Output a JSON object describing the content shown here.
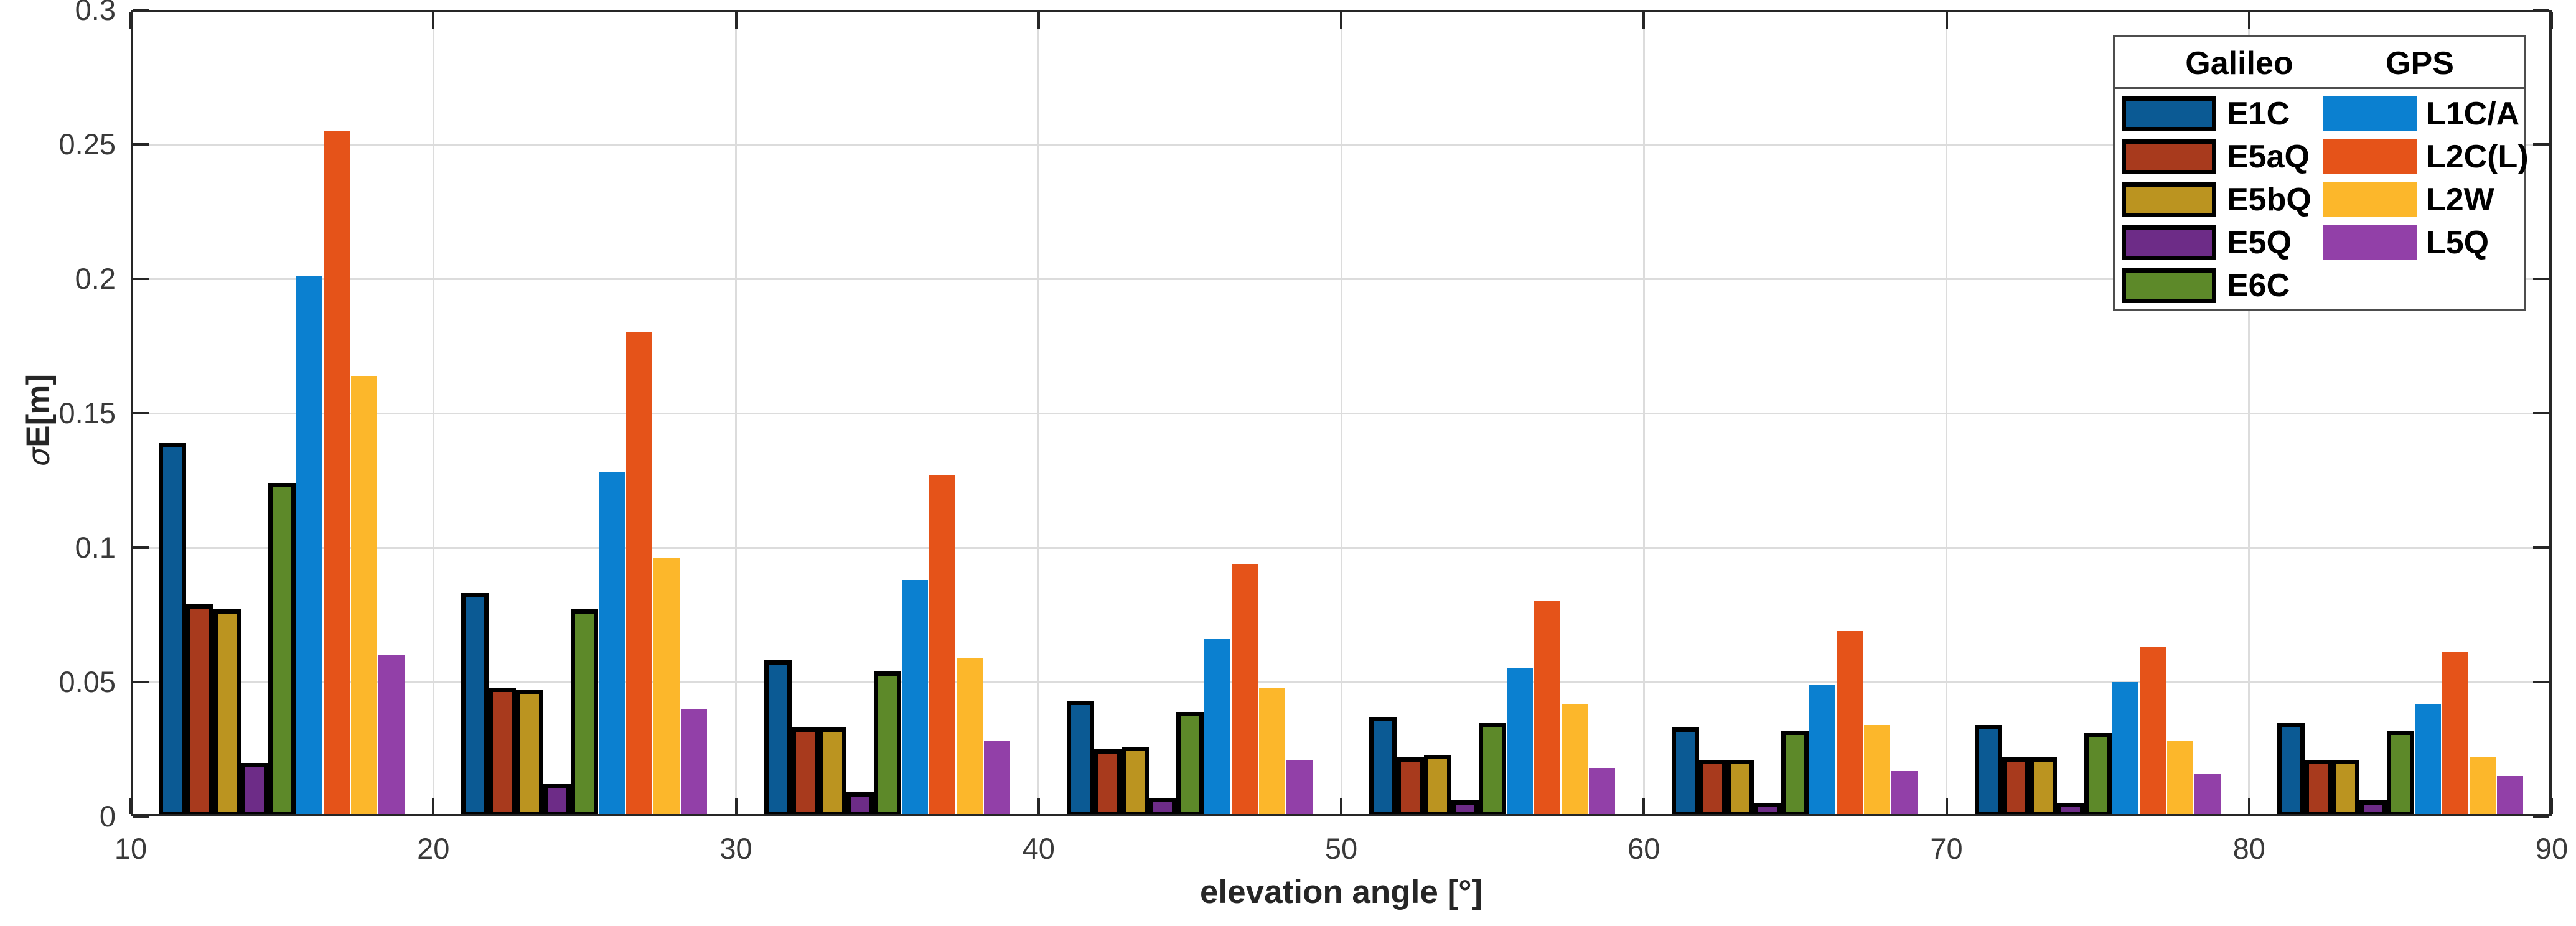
{
  "figure": {
    "background": "#ffffff"
  },
  "chart_data": {
    "type": "bar",
    "title": "",
    "xlabel": "elevation angle [°]",
    "ylabel": "σE[m]",
    "ylabel_sigma": "σ",
    "ylabel_rest": "E[m]",
    "xlim": [
      10,
      90
    ],
    "ylim": [
      0,
      0.3
    ],
    "grid": true,
    "legend_position": "top-right",
    "x_tick_values": [
      10,
      20,
      30,
      40,
      50,
      60,
      70,
      80,
      90
    ],
    "x_tick_labels": [
      "10",
      "20",
      "30",
      "40",
      "50",
      "60",
      "70",
      "80",
      "90"
    ],
    "y_tick_values": [
      0,
      0.05,
      0.1,
      0.15,
      0.2,
      0.25,
      0.3
    ],
    "y_tick_labels": [
      "0",
      "0.05",
      "0.1",
      "0.15",
      "0.2",
      "0.25",
      "0.3"
    ],
    "group_centers": [
      15,
      25,
      35,
      45,
      55,
      65,
      75,
      85
    ],
    "legend_groups": [
      "Galileo",
      "GPS"
    ],
    "series": [
      {
        "name": "E1C",
        "group": "Galileo",
        "color": "#0b5a94",
        "outlined": true,
        "values": [
          0.139,
          0.083,
          0.058,
          0.043,
          0.037,
          0.033,
          0.034,
          0.035
        ]
      },
      {
        "name": "E5aQ",
        "group": "Galileo",
        "color": "#a83a1d",
        "outlined": true,
        "values": [
          0.079,
          0.048,
          0.033,
          0.025,
          0.022,
          0.021,
          0.022,
          0.021
        ]
      },
      {
        "name": "E5bQ",
        "group": "Galileo",
        "color": "#bb9420",
        "outlined": true,
        "values": [
          0.077,
          0.047,
          0.033,
          0.026,
          0.023,
          0.021,
          0.022,
          0.021
        ]
      },
      {
        "name": "E5Q",
        "group": "Galileo",
        "color": "#6d2c87",
        "outlined": true,
        "values": [
          0.02,
          0.012,
          0.009,
          0.007,
          0.006,
          0.005,
          0.005,
          0.006
        ]
      },
      {
        "name": "E6C",
        "group": "Galileo",
        "color": "#5d8929",
        "outlined": true,
        "values": [
          0.124,
          0.077,
          0.054,
          0.039,
          0.035,
          0.032,
          0.031,
          0.032
        ]
      },
      {
        "name": "L1C/A",
        "group": "GPS",
        "color": "#0b80d0",
        "outlined": false,
        "values": [
          0.201,
          0.128,
          0.088,
          0.066,
          0.055,
          0.049,
          0.05,
          0.042
        ]
      },
      {
        "name": "L2C(L)",
        "group": "GPS",
        "color": "#e55319",
        "outlined": false,
        "values": [
          0.255,
          0.18,
          0.127,
          0.094,
          0.08,
          0.069,
          0.063,
          0.061
        ]
      },
      {
        "name": "L2W",
        "group": "GPS",
        "color": "#fcb72b",
        "outlined": false,
        "values": [
          0.164,
          0.096,
          0.059,
          0.048,
          0.042,
          0.034,
          0.028,
          0.022
        ]
      },
      {
        "name": "L5Q",
        "group": "GPS",
        "color": "#9240a8",
        "outlined": false,
        "values": [
          0.06,
          0.04,
          0.028,
          0.021,
          0.018,
          0.017,
          0.016,
          0.015
        ]
      }
    ],
    "axis_color": "#262626",
    "grid_color": "#dcdcdc",
    "tick_label_color": "#3a3a3a"
  }
}
